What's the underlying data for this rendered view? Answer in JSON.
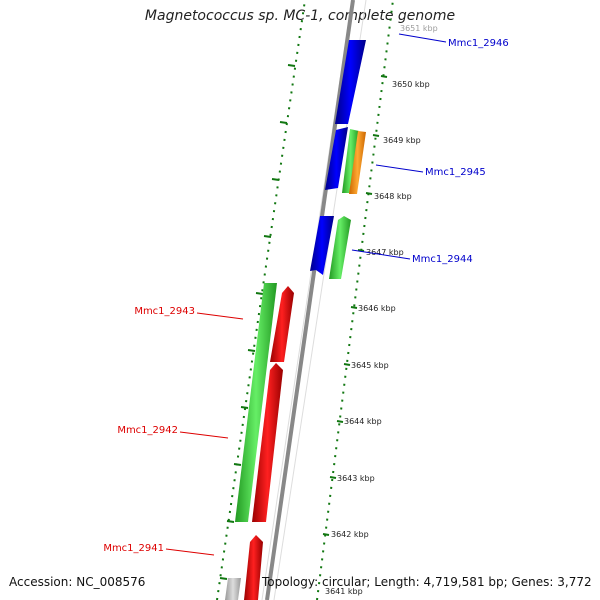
{
  "title": "Magnetococcus sp. MC-1, complete genome",
  "footer": {
    "accession": "Accession: NC_008576",
    "summary": "Topology: circular; Length: 4,719,581 bp; Genes: 3,772"
  },
  "ticks": [
    "3641 kbp",
    "3642 kbp",
    "3643 kbp",
    "3644 kbp",
    "3645 kbp",
    "3646 kbp",
    "3647 kbp",
    "3648 kbp",
    "3649 kbp",
    "3650 kbp",
    "3651 kbp"
  ],
  "gene_labels": [
    {
      "id": "Mmc1_2946",
      "color": "#0000cc"
    },
    {
      "id": "Mmc1_2945",
      "color": "#0000cc"
    },
    {
      "id": "Mmc1_2944",
      "color": "#0000cc"
    },
    {
      "id": "Mmc1_2943",
      "color": "#dd0000"
    },
    {
      "id": "Mmc1_2942",
      "color": "#dd0000"
    },
    {
      "id": "Mmc1_2941",
      "color": "#dd0000"
    }
  ],
  "colors": {
    "forward_strand": "#0000ee",
    "reverse_strand": "#ee0000",
    "cds_track": "#33cc33",
    "other_feature": "#ff9900",
    "backbone": "#888888",
    "tick_marks": "#117711",
    "partial_feature": "#bbbbbb"
  }
}
